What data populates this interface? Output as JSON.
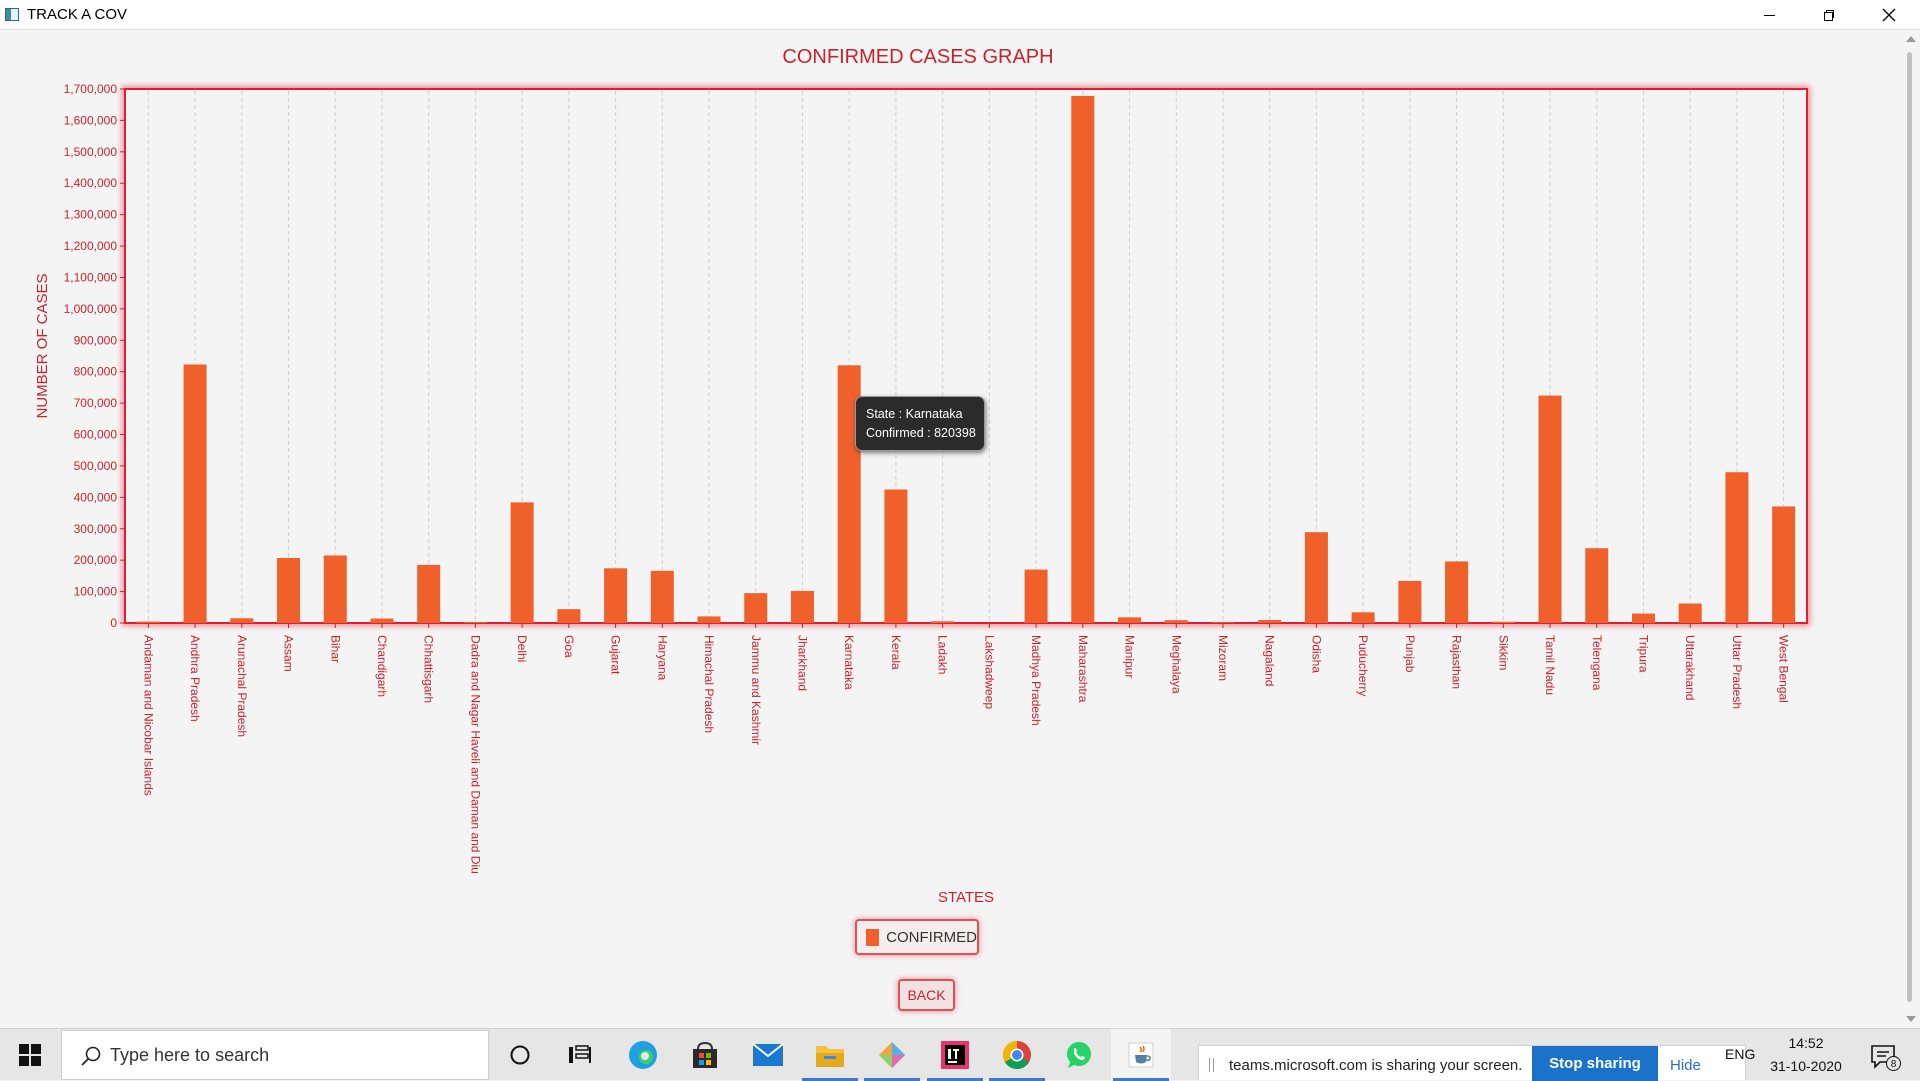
{
  "window": {
    "title": "TRACK A COV"
  },
  "chart_data": {
    "type": "bar",
    "title": "CONFIRMED CASES GRAPH",
    "xlabel": "STATES",
    "ylabel": "NUMBER OF CASES",
    "ylim": [
      0,
      1700000
    ],
    "yticks": [
      0,
      100000,
      200000,
      300000,
      400000,
      500000,
      600000,
      700000,
      800000,
      900000,
      1000000,
      1100000,
      1200000,
      1300000,
      1400000,
      1500000,
      1600000,
      1700000
    ],
    "ytick_labels": [
      "0",
      "100,000",
      "200,000",
      "300,000",
      "400,000",
      "500,000",
      "600,000",
      "700,000",
      "800,000",
      "900,000",
      "1,000,000",
      "1,100,000",
      "1,200,000",
      "1,300,000",
      "1,400,000",
      "1,500,000",
      "1,600,000",
      "1,700,000"
    ],
    "categories": [
      "Andaman and Nicobar Islands",
      "Andhra Pradesh",
      "Arunachal Pradesh",
      "Assam",
      "Bihar",
      "Chandigarh",
      "Chhattisgarh",
      "Dadra and Nagar Haveli and Daman and Diu",
      "Delhi",
      "Goa",
      "Gujarat",
      "Haryana",
      "Himachal Pradesh",
      "Jammu and Kashmir",
      "Jharkhand",
      "Karnataka",
      "Kerala",
      "Ladakh",
      "Lakshadweep",
      "Madhya Pradesh",
      "Maharashtra",
      "Manipur",
      "Meghalaya",
      "Mizoram",
      "Nagaland",
      "Odisha",
      "Puducherry",
      "Punjab",
      "Rajasthan",
      "Sikkim",
      "Tamil Nadu",
      "Telengana",
      "Tripura",
      "Uttarakhand",
      "Uttar Pradesh",
      "West Bengal"
    ],
    "series": [
      {
        "name": "CONFIRMED",
        "color": "#f0602a",
        "values": [
          4500,
          823000,
          15000,
          207000,
          215000,
          14000,
          185000,
          3200,
          384000,
          44000,
          174000,
          166000,
          21000,
          95000,
          102000,
          820398,
          425000,
          5500,
          0,
          170000,
          1678000,
          18000,
          9000,
          2500,
          9500,
          289000,
          34000,
          134000,
          196000,
          4000,
          724000,
          238000,
          30000,
          62000,
          480000,
          371000
        ]
      }
    ],
    "legend": {
      "label": "CONFIRMED",
      "position": "bottom-center"
    },
    "grid": {
      "vertical": true,
      "horizontal": false
    },
    "tooltip": {
      "line1": "State : Karnataka",
      "line2": "Confirmed : 820398"
    }
  },
  "buttons": {
    "back_label": "BACK"
  },
  "colors": {
    "accent": "#c8232c",
    "bar": "#f0602a",
    "plot_border": "#e02030"
  },
  "taskbar": {
    "search_placeholder": "Type here to search",
    "icons": [
      "cortana-icon",
      "task-view-icon",
      "edge-icon",
      "store-icon",
      "mail-icon",
      "file-explorer-icon",
      "paint-3d-icon",
      "intellij-icon",
      "chrome-icon",
      "whatsapp-icon",
      "java-icon"
    ],
    "share_text": "teams.microsoft.com is sharing your screen.",
    "stop_sharing_label": "Stop sharing",
    "hide_label": "Hide",
    "language": "ENG",
    "time": "14:52",
    "date": "31-10-2020",
    "notification_count": "8"
  }
}
